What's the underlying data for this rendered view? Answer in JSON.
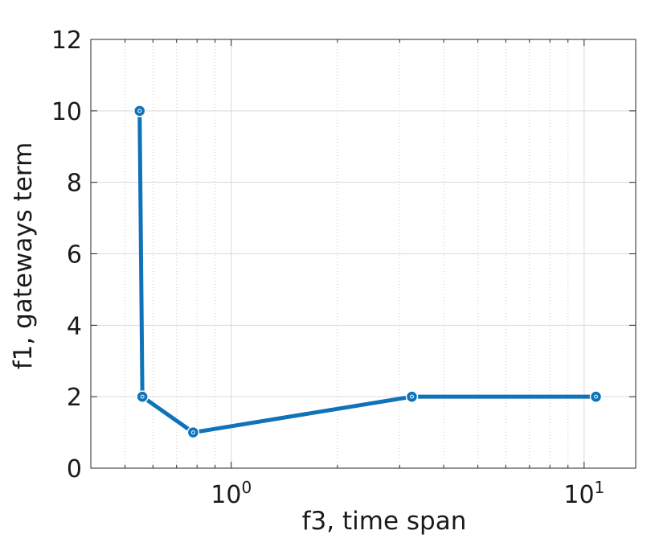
{
  "chart_data": {
    "type": "line",
    "xscale": "log",
    "xlim": [
      0.4,
      14
    ],
    "ylim": [
      0,
      12
    ],
    "grid": true,
    "xlabel": "f3, time span",
    "ylabel": "f1, gateways term",
    "x_ticks": [
      {
        "value": 1,
        "base": "10",
        "exp": "0"
      },
      {
        "value": 10,
        "base": "10",
        "exp": "1"
      }
    ],
    "y_ticks": [
      0,
      2,
      4,
      6,
      8,
      10,
      12
    ],
    "series": [
      {
        "x": [
          0.55,
          0.56,
          0.78,
          3.25,
          10.8
        ],
        "y": [
          10,
          2,
          1,
          2,
          2
        ],
        "color": "#0f73b8"
      }
    ]
  }
}
